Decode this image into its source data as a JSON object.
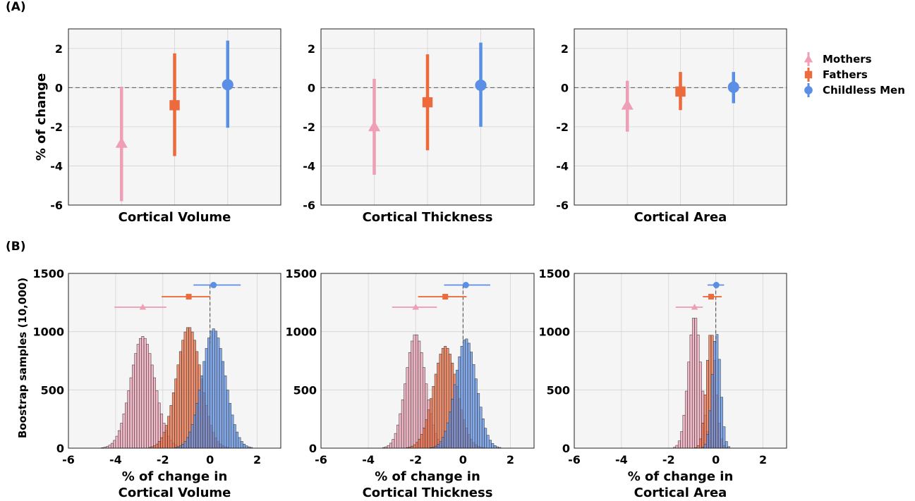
{
  "panel_labels": {
    "a": "(A)",
    "b": "(B)"
  },
  "legend": {
    "items": [
      {
        "label": "Mothers",
        "color": "#EE9FB6",
        "marker": "triangle"
      },
      {
        "label": "Fathers",
        "color": "#EC6A3C",
        "marker": "square"
      },
      {
        "label": "Childless Men",
        "color": "#5B8FE6",
        "marker": "circle"
      }
    ]
  },
  "colors": {
    "mothers": "#EE9FB6",
    "fathers": "#EC6A3C",
    "childless": "#5B8FE6",
    "axes_bg": "#F5F5F5",
    "grid": "#D4D4D4"
  },
  "chart_data": [
    {
      "type": "scatter",
      "xlabel": "Cortical Volume",
      "ylabel": "% of change",
      "ylim": [
        -6,
        3
      ],
      "yticks": [
        -6,
        -4,
        -2,
        0,
        2
      ],
      "grid": true,
      "series": [
        {
          "name": "Mothers",
          "value": -2.85,
          "ci": [
            -5.8,
            0.05
          ]
        },
        {
          "name": "Fathers",
          "value": -0.9,
          "ci": [
            -3.5,
            1.75
          ]
        },
        {
          "name": "Childless Men",
          "value": 0.15,
          "ci": [
            -2.05,
            2.4
          ]
        }
      ]
    },
    {
      "type": "scatter",
      "xlabel": "Cortical Thickness",
      "ylabel": "",
      "ylim": [
        -6,
        3
      ],
      "yticks": [
        -6,
        -4,
        -2,
        0,
        2
      ],
      "grid": true,
      "series": [
        {
          "name": "Mothers",
          "value": -2.0,
          "ci": [
            -4.45,
            0.45
          ]
        },
        {
          "name": "Fathers",
          "value": -0.75,
          "ci": [
            -3.2,
            1.7
          ]
        },
        {
          "name": "Childless Men",
          "value": 0.12,
          "ci": [
            -2.0,
            2.3
          ]
        }
      ]
    },
    {
      "type": "scatter",
      "xlabel": "Cortical Area",
      "ylabel": "",
      "ylim": [
        -6,
        3
      ],
      "yticks": [
        -6,
        -4,
        -2,
        0,
        2
      ],
      "grid": true,
      "series": [
        {
          "name": "Mothers",
          "value": -0.9,
          "ci": [
            -2.25,
            0.35
          ]
        },
        {
          "name": "Fathers",
          "value": -0.2,
          "ci": [
            -1.15,
            0.8
          ]
        },
        {
          "name": "Childless Men",
          "value": 0.02,
          "ci": [
            -0.8,
            0.8
          ]
        }
      ]
    },
    {
      "type": "bar",
      "histogram": true,
      "xlabel_line1": "% of change in",
      "xlabel_line2": "Cortical Volume",
      "ylabel": "Boostrap samples (10,000)",
      "xlim": [
        -6,
        3
      ],
      "ylim": [
        0,
        1500
      ],
      "xticks": [
        -6,
        -4,
        -2,
        0,
        2
      ],
      "yticks": [
        0,
        500,
        1000,
        1500
      ],
      "grid": true,
      "bin_width": 0.1,
      "series": [
        {
          "name": "Mothers",
          "mean": -2.85,
          "sd": 0.52,
          "peak": 960
        },
        {
          "name": "Fathers",
          "mean": -0.9,
          "sd": 0.52,
          "peak": 1040
        },
        {
          "name": "Childless Men",
          "mean": 0.15,
          "sd": 0.5,
          "peak": 1025
        }
      ],
      "ci_bars": [
        {
          "name": "Mothers",
          "value": -2.85,
          "ci": [
            -4.05,
            -1.85
          ],
          "y": 1210
        },
        {
          "name": "Fathers",
          "value": -0.9,
          "ci": [
            -2.05,
            0.0
          ],
          "y": 1300
        },
        {
          "name": "Childless Men",
          "value": 0.15,
          "ci": [
            -0.7,
            1.3
          ],
          "y": 1400
        }
      ]
    },
    {
      "type": "bar",
      "histogram": true,
      "xlabel_line1": "% of change in",
      "xlabel_line2": "Cortical Thickness",
      "ylabel": "",
      "xlim": [
        -6,
        3
      ],
      "ylim": [
        0,
        1500
      ],
      "xticks": [
        -6,
        -4,
        -2,
        0,
        2
      ],
      "yticks": [
        0,
        500,
        1000,
        1500
      ],
      "grid": true,
      "bin_width": 0.1,
      "series": [
        {
          "name": "Mothers",
          "mean": -2.0,
          "sd": 0.42,
          "peak": 980
        },
        {
          "name": "Fathers",
          "mean": -0.75,
          "sd": 0.5,
          "peak": 875
        },
        {
          "name": "Childless Men",
          "mean": 0.12,
          "sd": 0.45,
          "peak": 940
        }
      ],
      "ci_bars": [
        {
          "name": "Mothers",
          "value": -2.0,
          "ci": [
            -3.0,
            -1.1
          ],
          "y": 1210
        },
        {
          "name": "Fathers",
          "value": -0.75,
          "ci": [
            -1.9,
            0.15
          ],
          "y": 1300
        },
        {
          "name": "Childless Men",
          "value": 0.12,
          "ci": [
            -0.8,
            1.15
          ],
          "y": 1400
        }
      ]
    },
    {
      "type": "bar",
      "histogram": true,
      "xlabel_line1": "% of change in",
      "xlabel_line2": "Cortical Area",
      "ylabel": "",
      "xlim": [
        -6,
        3
      ],
      "ylim": [
        0,
        1500
      ],
      "xticks": [
        -6,
        -4,
        -2,
        0,
        2
      ],
      "yticks": [
        0,
        500,
        1000,
        1500
      ],
      "grid": true,
      "bin_width": 0.1,
      "series": [
        {
          "name": "Mothers",
          "mean": -0.9,
          "sd": 0.27,
          "peak": 1135
        },
        {
          "name": "Fathers",
          "mean": -0.2,
          "sd": 0.2,
          "peak": 1000
        },
        {
          "name": "Childless Men",
          "mean": 0.02,
          "sd": 0.18,
          "peak": 990
        }
      ],
      "ci_bars": [
        {
          "name": "Mothers",
          "value": -0.9,
          "ci": [
            -1.7,
            -0.55
          ],
          "y": 1210
        },
        {
          "name": "Fathers",
          "value": -0.2,
          "ci": [
            -0.55,
            0.25
          ],
          "y": 1300
        },
        {
          "name": "Childless Men",
          "value": 0.02,
          "ci": [
            -0.35,
            0.35
          ],
          "y": 1400
        }
      ]
    }
  ]
}
